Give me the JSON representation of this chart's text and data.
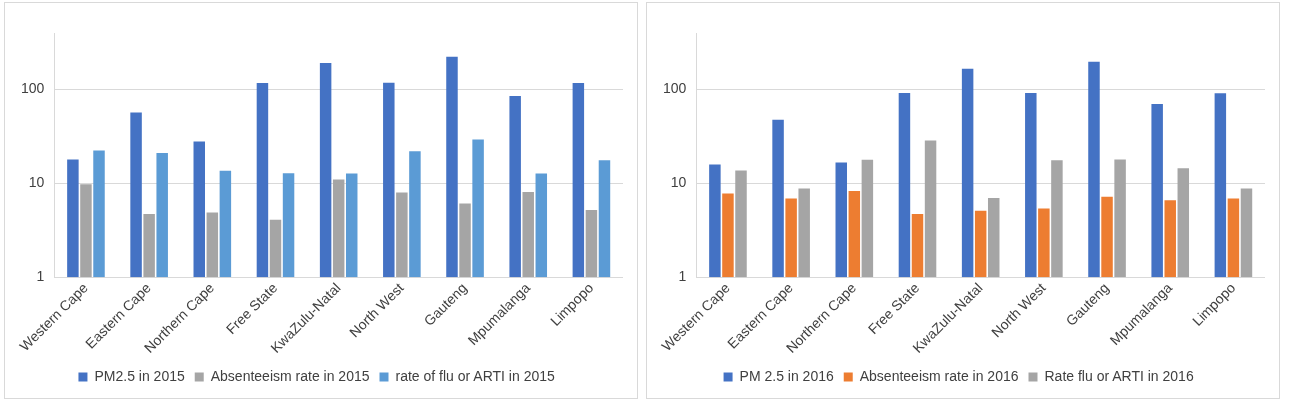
{
  "chart_data": [
    {
      "type": "bar",
      "log": "y",
      "grid": "y",
      "legend": "bottom",
      "ylim": [
        1,
        400
      ],
      "yticks": [
        1,
        10,
        100
      ],
      "categories": [
        "Western Cape",
        "Eastern Cape",
        "Northern Cape",
        "Free State",
        "KwaZulu-Natal",
        "North West",
        "Gauteng",
        "Mpumalanga",
        "Limpopo"
      ],
      "series": [
        {
          "name": "PM2.5 in 2015",
          "color": "#4472c4",
          "values": [
            18,
            57,
            28,
            117,
            192,
            118,
            223,
            85,
            117
          ]
        },
        {
          "name": "Absenteeism rate in 2015",
          "color": "#a5a5a5",
          "values": [
            9.8,
            4.7,
            4.9,
            4.1,
            11,
            8,
            6.1,
            8.1,
            5.2
          ]
        },
        {
          "name": "rate of flu or ARTI in 2015",
          "color": "#5b9bd5",
          "values": [
            22.4,
            21,
            13.6,
            12.8,
            12.7,
            22,
            29.4,
            12.7,
            17.6
          ]
        }
      ]
    },
    {
      "type": "bar",
      "log": "y",
      "grid": "y",
      "legend": "bottom",
      "ylim": [
        1,
        400
      ],
      "yticks": [
        1,
        10,
        100
      ],
      "categories": [
        "Western Cape",
        "Eastern Cape",
        "Northern Cape",
        "Free State",
        "KwaZulu-Natal",
        "North West",
        "Gauteng",
        "Mpumalanga",
        "Limpopo"
      ],
      "series": [
        {
          "name": "PM 2.5 in 2016",
          "color": "#4472c4",
          "values": [
            15.9,
            47.5,
            16.7,
            92,
            166,
            92,
            198,
            70,
            91
          ]
        },
        {
          "name": "Absenteeism rate in 2016",
          "color": "#ed7d31",
          "values": [
            7.8,
            6.9,
            8.3,
            4.7,
            5.1,
            5.4,
            7.2,
            6.6,
            6.9
          ]
        },
        {
          "name": "Rate flu or ARTI in 2016",
          "color": "#a5a5a5",
          "values": [
            13.7,
            8.8,
            17.8,
            28.6,
            7,
            17.6,
            17.9,
            14.5,
            8.8
          ]
        }
      ]
    }
  ]
}
